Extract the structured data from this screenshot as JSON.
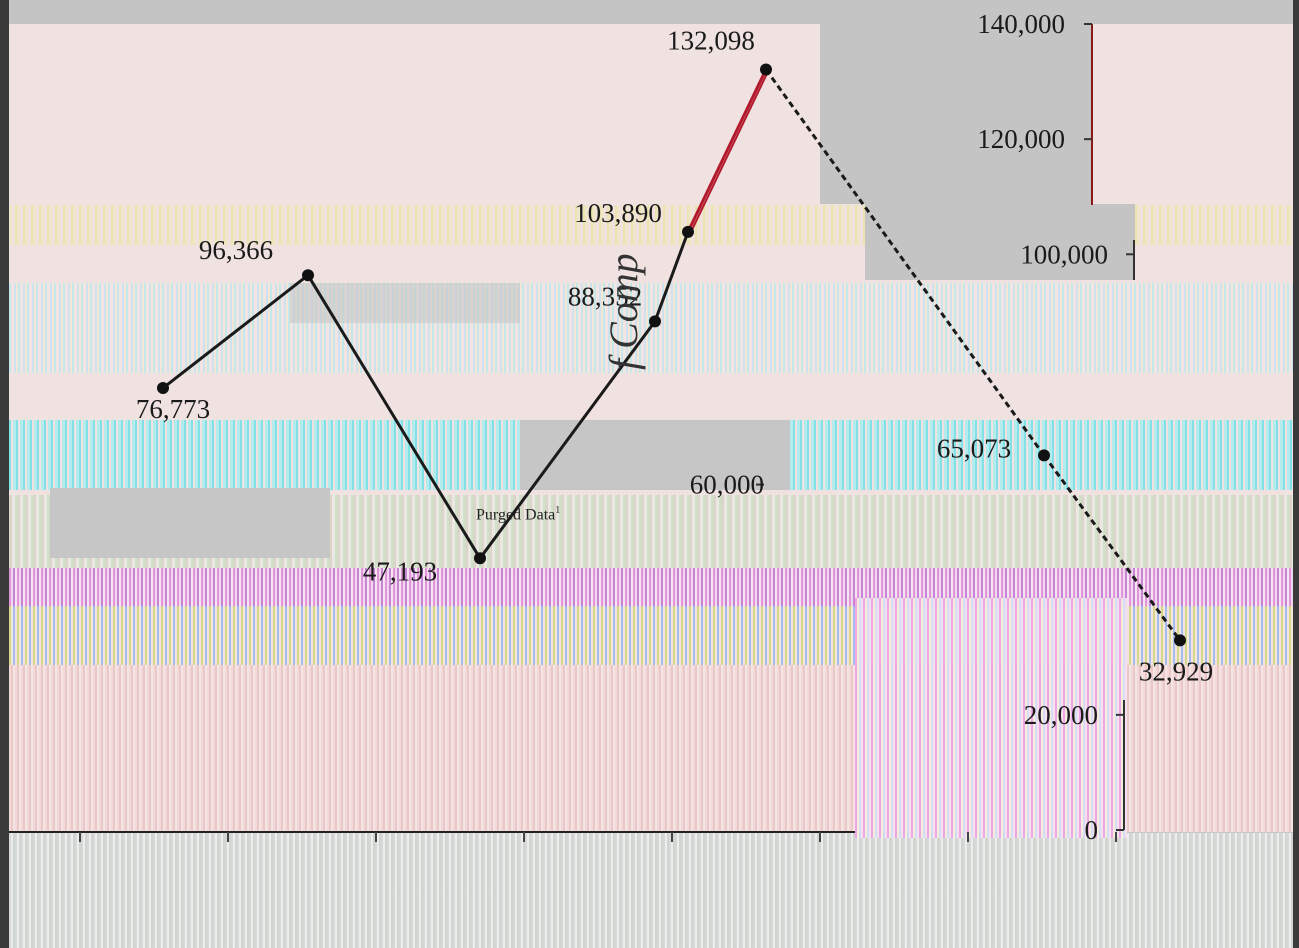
{
  "chart_data": {
    "type": "line",
    "title": "",
    "xlabel": "",
    "ylabel": "f Comp",
    "legend": [
      "Purged Data"
    ],
    "legend_superscript": "1",
    "ylim": [
      0,
      140000
    ],
    "y_ticks": [
      "0",
      "20,000",
      "60,000",
      "100,000",
      "120,000",
      "140,000"
    ],
    "y_tick_values": [
      0,
      20000,
      60000,
      100000,
      120000,
      140000
    ],
    "points": [
      {
        "x": 0,
        "value": 76773,
        "label": "76,773"
      },
      {
        "x": 1,
        "value": 96366,
        "label": "96,366"
      },
      {
        "x": 2,
        "value": 47193,
        "label": "47,193"
      },
      {
        "x": 3,
        "value": 88352,
        "label": "88,352"
      },
      {
        "x": 4,
        "value": 103890,
        "label": "103,890"
      },
      {
        "x": 5,
        "value": 132098,
        "label": "132,098"
      },
      {
        "x": 6,
        "value": 65073,
        "label": "65,073"
      },
      {
        "x": 7,
        "value": 32929,
        "label": "32,929"
      }
    ],
    "colors": {
      "line": "#1a1a1a",
      "accent_line": "#b3192d",
      "marker": "#111111",
      "plot_bg": "#f0e2e0",
      "axis": "#8a1a1a"
    }
  }
}
